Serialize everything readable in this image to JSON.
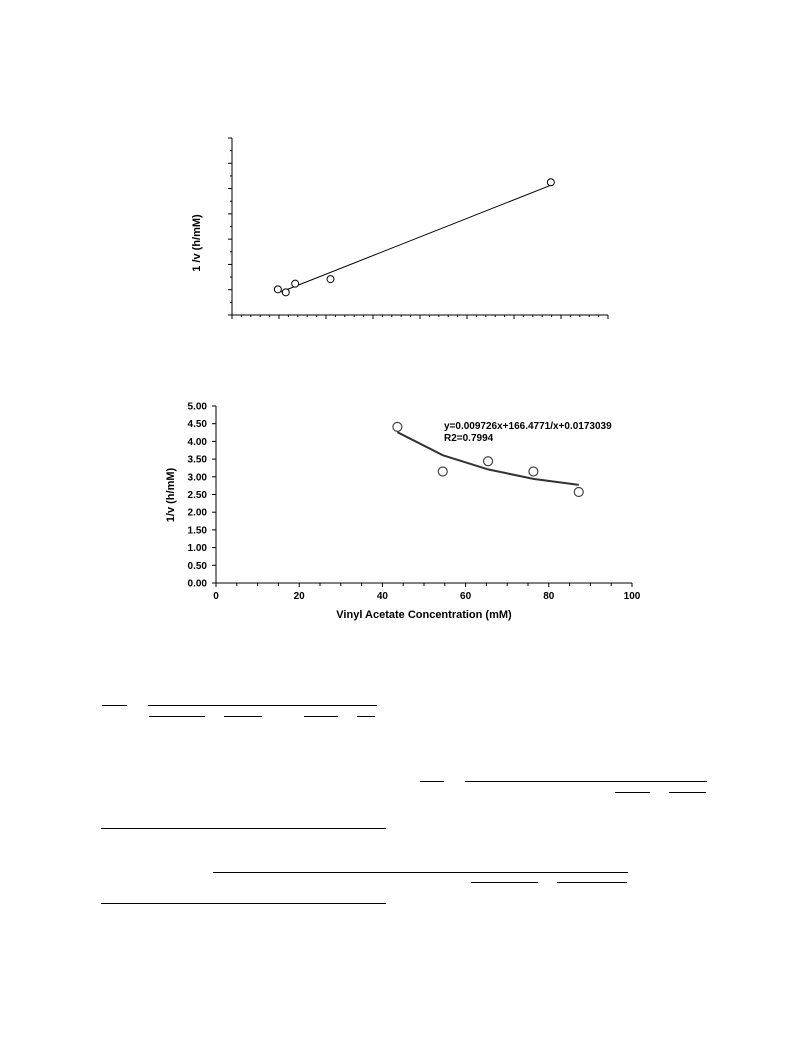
{
  "chart_data": [
    {
      "type": "scatter",
      "title": "",
      "xlabel": "",
      "ylabel": "1 /v  (h/mM)",
      "tick_labels_shown": false,
      "grid": false,
      "points": [
        {
          "x": 12.2,
          "y": 14.5
        },
        {
          "x": 14.3,
          "y": 12.8
        },
        {
          "x": 16.8,
          "y": 17.7
        },
        {
          "x": 26.2,
          "y": 20.3
        },
        {
          "x": 84.8,
          "y": 75.0
        }
      ],
      "fit_line": {
        "type": "linear",
        "from": [
          13.0,
          13.0
        ],
        "to": [
          85.0,
          73.5
        ]
      },
      "xlim": [
        0,
        100
      ],
      "ylim": [
        0,
        100
      ]
    },
    {
      "type": "scatter",
      "title": "",
      "xlabel": "Vinyl Acetate Concentration (mM)",
      "ylabel": "1/v (h/mM)",
      "grid": false,
      "x_ticks": [
        "0",
        "20",
        "40",
        "60",
        "80",
        "100"
      ],
      "y_ticks": [
        "0.00",
        "0.50",
        "1.00",
        "1.50",
        "2.00",
        "2.50",
        "3.00",
        "3.50",
        "4.00",
        "4.50",
        "5.00"
      ],
      "xlim": [
        0,
        100
      ],
      "ylim": [
        0,
        5
      ],
      "points": [
        {
          "x": 43.6,
          "y": 4.41
        },
        {
          "x": 54.5,
          "y": 3.15
        },
        {
          "x": 65.4,
          "y": 3.44
        },
        {
          "x": 76.3,
          "y": 3.15
        },
        {
          "x": 87.2,
          "y": 2.57
        }
      ],
      "fit_curve": {
        "x": [
          43.6,
          54.5,
          65.4,
          76.3,
          87.2
        ],
        "y": [
          4.26,
          3.61,
          3.21,
          2.94,
          2.77
        ]
      },
      "annotations": [
        "y=0.009726x+166.4771/x+0.0173039",
        "R2=0.7994"
      ]
    }
  ]
}
